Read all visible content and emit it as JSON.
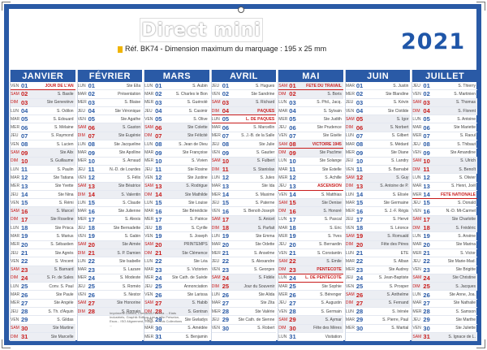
{
  "brand": "Direct mini",
  "reference": "Réf. BK74 - Dimension maximum du marquage : 195 x 25 mm",
  "year": "2021",
  "months": [
    {
      "name": "JANVIER",
      "days": [
        [
          "VEN",
          "01",
          "JOUR DE L'AN"
        ],
        [
          "SAM",
          "02",
          "S. Basile"
        ],
        [
          "DIM",
          "03",
          "Ste Geneviève"
        ],
        [
          "LUN",
          "04",
          "S. Odilon"
        ],
        [
          "MAR",
          "05",
          "S. Edouard"
        ],
        [
          "MER",
          "06",
          "S. Mélaine"
        ],
        [
          "JEU",
          "07",
          "S. Raymond"
        ],
        [
          "VEN",
          "08",
          "S. Lucien"
        ],
        [
          "SAM",
          "09",
          "Ste Alix"
        ],
        [
          "DIM",
          "10",
          "S. Guillaume"
        ],
        [
          "LUN",
          "11",
          "S. Paulin"
        ],
        [
          "MAR",
          "12",
          "Ste Tatiana"
        ],
        [
          "MER",
          "13",
          "Ste Yvette"
        ],
        [
          "JEU",
          "14",
          "Ste Nina"
        ],
        [
          "VEN",
          "15",
          "S. Rémi"
        ],
        [
          "SAM",
          "16",
          "S. Marcel"
        ],
        [
          "DIM",
          "17",
          "Ste Roseline"
        ],
        [
          "LUN",
          "18",
          "Ste Prisca"
        ],
        [
          "MAR",
          "19",
          "S. Marius"
        ],
        [
          "MER",
          "20",
          "S. Sébastien"
        ],
        [
          "JEU",
          "21",
          "Ste Agnès"
        ],
        [
          "VEN",
          "22",
          "S. Vincent"
        ],
        [
          "SAM",
          "23",
          "S. Barnard"
        ],
        [
          "DIM",
          "24",
          "S. Fr. de Sales"
        ],
        [
          "LUN",
          "25",
          "Conv. S. Paul"
        ],
        [
          "MAR",
          "26",
          "Ste Paule"
        ],
        [
          "MER",
          "27",
          "Ste Angèle"
        ],
        [
          "JEU",
          "28",
          "S. Th. d'Aquin"
        ],
        [
          "VEN",
          "29",
          "S. Gildas"
        ],
        [
          "SAM",
          "30",
          "Ste Martine"
        ],
        [
          "DIM",
          "31",
          "Ste Marcelle"
        ]
      ]
    },
    {
      "name": "FÉVRIER",
      "days": [
        [
          "LUN",
          "01",
          "Ste Ella"
        ],
        [
          "MAR",
          "02",
          "Présentation"
        ],
        [
          "MER",
          "03",
          "S. Blaise"
        ],
        [
          "JEU",
          "04",
          "Ste Véronique"
        ],
        [
          "VEN",
          "05",
          "Ste Agathe"
        ],
        [
          "SAM",
          "06",
          "S. Gaston"
        ],
        [
          "DIM",
          "07",
          "Ste Eugénie"
        ],
        [
          "LUN",
          "08",
          "Ste Jacqueline"
        ],
        [
          "MAR",
          "09",
          "Ste Apolline"
        ],
        [
          "MER",
          "10",
          "S. Arnaud"
        ],
        [
          "JEU",
          "11",
          "N.-D. de Lourdes"
        ],
        [
          "VEN",
          "12",
          "S. Félix"
        ],
        [
          "SAM",
          "13",
          "Ste Béatrice"
        ],
        [
          "DIM",
          "14",
          "S. Valentin"
        ],
        [
          "LUN",
          "15",
          "S. Claude"
        ],
        [
          "MAR",
          "16",
          "Ste Julienne"
        ],
        [
          "MER",
          "17",
          "S. Alexis"
        ],
        [
          "JEU",
          "18",
          "Ste Bernadette"
        ],
        [
          "VEN",
          "19",
          "S. Gabin"
        ],
        [
          "SAM",
          "20",
          "Ste Aimée"
        ],
        [
          "DIM",
          "21",
          "S. P. Damien"
        ],
        [
          "LUN",
          "22",
          "Ste Isabelle"
        ],
        [
          "MAR",
          "23",
          "S. Lazare"
        ],
        [
          "MER",
          "24",
          "S. Modeste"
        ],
        [
          "JEU",
          "25",
          "S. Roméo"
        ],
        [
          "VEN",
          "26",
          "S. Nestor"
        ],
        [
          "SAM",
          "27",
          "Ste Honorine"
        ],
        [
          "DIM",
          "28",
          "S. Romain"
        ]
      ]
    },
    {
      "name": "MARS",
      "days": [
        [
          "LUN",
          "01",
          "S. Aubin"
        ],
        [
          "MAR",
          "02",
          "S. Charles le Bon"
        ],
        [
          "MER",
          "03",
          "S. Guénolé"
        ],
        [
          "JEU",
          "04",
          "S. Casimir"
        ],
        [
          "VEN",
          "05",
          "S. Olive"
        ],
        [
          "SAM",
          "06",
          "Ste Colette"
        ],
        [
          "DIM",
          "07",
          "Ste Félicité"
        ],
        [
          "LUN",
          "08",
          "S. Jean de Dieu"
        ],
        [
          "MAR",
          "09",
          "Ste Françoise"
        ],
        [
          "MER",
          "10",
          "S. Vivien"
        ],
        [
          "JEU",
          "11",
          "Ste Rosine"
        ],
        [
          "VEN",
          "12",
          "Ste Justine"
        ],
        [
          "SAM",
          "13",
          "S. Rodrigue"
        ],
        [
          "DIM",
          "14",
          "Ste Mathilde"
        ],
        [
          "LUN",
          "15",
          "Ste Louise"
        ],
        [
          "MAR",
          "16",
          "Ste Bénédicte"
        ],
        [
          "MER",
          "17",
          "S. Patrice"
        ],
        [
          "JEU",
          "18",
          "S. Cyrille"
        ],
        [
          "VEN",
          "19",
          "S. Joseph"
        ],
        [
          "SAM",
          "20",
          "PRINTEMPS"
        ],
        [
          "DIM",
          "21",
          "Ste Clémence"
        ],
        [
          "LUN",
          "22",
          "Ste Léa"
        ],
        [
          "MAR",
          "23",
          "S. Victorien"
        ],
        [
          "MER",
          "24",
          "Ste Cath. de Suède"
        ],
        [
          "JEU",
          "25",
          "Annonciation"
        ],
        [
          "VEN",
          "26",
          "Ste Larissa"
        ],
        [
          "SAM",
          "27",
          "S. Habib"
        ],
        [
          "DIM",
          "28",
          "S. Gontran"
        ],
        [
          "LUN",
          "29",
          "Ste Gwladys"
        ],
        [
          "MAR",
          "30",
          "S. Amédée"
        ],
        [
          "MER",
          "31",
          "S. Benjamin"
        ]
      ]
    },
    {
      "name": "AVRIL",
      "days": [
        [
          "JEU",
          "01",
          "S. Hugues"
        ],
        [
          "VEN",
          "02",
          "Ste Sandrine"
        ],
        [
          "SAM",
          "03",
          "S. Richard"
        ],
        [
          "DIM",
          "04",
          "PÂQUES"
        ],
        [
          "LUN",
          "05",
          "L. DE PÂQUES"
        ],
        [
          "MAR",
          "06",
          "S. Marcellin"
        ],
        [
          "MER",
          "07",
          "S. J.-B. de la Salle"
        ],
        [
          "JEU",
          "08",
          "Ste Julie"
        ],
        [
          "VEN",
          "09",
          "S. Gautier"
        ],
        [
          "SAM",
          "10",
          "S. Fulbert"
        ],
        [
          "DIM",
          "11",
          "S. Stanislas"
        ],
        [
          "LUN",
          "12",
          "S. Jules"
        ],
        [
          "MAR",
          "13",
          "Ste Ida"
        ],
        [
          "MER",
          "14",
          "S. Maxime"
        ],
        [
          "JEU",
          "15",
          "S. Paterne"
        ],
        [
          "VEN",
          "16",
          "S. Benoît-Joseph"
        ],
        [
          "SAM",
          "17",
          "S. Anicet"
        ],
        [
          "DIM",
          "18",
          "S. Parfait"
        ],
        [
          "LUN",
          "19",
          "Ste Emma"
        ],
        [
          "MAR",
          "20",
          "Ste Odette"
        ],
        [
          "MER",
          "21",
          "S. Anselme"
        ],
        [
          "JEU",
          "22",
          "S. Alexandre"
        ],
        [
          "VEN",
          "23",
          "S. Georges"
        ],
        [
          "SAM",
          "24",
          "S. Fidèle"
        ],
        [
          "DIM",
          "25",
          "Jour du Souvenir"
        ],
        [
          "LUN",
          "26",
          "Ste Alida"
        ],
        [
          "MAR",
          "27",
          "Ste Zita"
        ],
        [
          "MER",
          "28",
          "Ste Valérie"
        ],
        [
          "JEU",
          "29",
          "Ste Cath. de Sienne"
        ],
        [
          "VEN",
          "30",
          "S. Robert"
        ]
      ]
    },
    {
      "name": "MAI",
      "days": [
        [
          "SAM",
          "01",
          "FÊTE DU TRAVAIL"
        ],
        [
          "DIM",
          "02",
          "S. Boris"
        ],
        [
          "LUN",
          "03",
          "S. Phil., Jacq."
        ],
        [
          "MAR",
          "04",
          "S. Sylvain"
        ],
        [
          "MER",
          "05",
          "Ste Judith"
        ],
        [
          "JEU",
          "06",
          "Ste Prudence"
        ],
        [
          "VEN",
          "07",
          "Ste Gisèle"
        ],
        [
          "SAM",
          "08",
          "VICTOIRE 1945"
        ],
        [
          "DIM",
          "09",
          "Ste Pacôme"
        ],
        [
          "LUN",
          "10",
          "Ste Solange"
        ],
        [
          "MAR",
          "11",
          "Ste Estelle"
        ],
        [
          "MER",
          "12",
          "S. Achille"
        ],
        [
          "JEU",
          "13",
          "ASCENSION"
        ],
        [
          "VEN",
          "14",
          "S. Matthias"
        ],
        [
          "SAM",
          "15",
          "Ste Denise"
        ],
        [
          "DIM",
          "16",
          "S. Honoré"
        ],
        [
          "LUN",
          "17",
          "S. Pascal"
        ],
        [
          "MAR",
          "18",
          "S. Eric"
        ],
        [
          "MER",
          "19",
          "S. Yves"
        ],
        [
          "JEU",
          "20",
          "S. Bernardin"
        ],
        [
          "VEN",
          "21",
          "S. Constantin"
        ],
        [
          "SAM",
          "22",
          "S. Emile"
        ],
        [
          "DIM",
          "23",
          "PENTECÔTE"
        ],
        [
          "LUN",
          "24",
          "L. DE PENTECÔTE"
        ],
        [
          "MAR",
          "25",
          "Ste Sophie"
        ],
        [
          "MER",
          "26",
          "S. Bérenger"
        ],
        [
          "JEU",
          "27",
          "S. Augustin"
        ],
        [
          "VEN",
          "28",
          "S. Germain"
        ],
        [
          "SAM",
          "29",
          "S. Aymar"
        ],
        [
          "DIM",
          "30",
          "Fête des Mères"
        ],
        [
          "LUN",
          "31",
          "Visitation"
        ]
      ]
    },
    {
      "name": "JUIN",
      "days": [
        [
          "MAR",
          "01",
          "S. Justin"
        ],
        [
          "MER",
          "02",
          "Ste Blandine"
        ],
        [
          "JEU",
          "03",
          "S. Kévin"
        ],
        [
          "VEN",
          "04",
          "Ste Clotilde"
        ],
        [
          "SAM",
          "05",
          "S. Igor"
        ],
        [
          "DIM",
          "06",
          "S. Norbert"
        ],
        [
          "LUN",
          "07",
          "S. Gilbert"
        ],
        [
          "MAR",
          "08",
          "S. Médard"
        ],
        [
          "MER",
          "09",
          "Ste Diane"
        ],
        [
          "JEU",
          "10",
          "S. Landry"
        ],
        [
          "VEN",
          "11",
          "S. Barnabé"
        ],
        [
          "SAM",
          "12",
          "S. Guy"
        ],
        [
          "DIM",
          "13",
          "S. Antoine de P."
        ],
        [
          "LUN",
          "14",
          "S. Elisée"
        ],
        [
          "MAR",
          "15",
          "Ste Germaine"
        ],
        [
          "MER",
          "16",
          "S. J.-F. Régis"
        ],
        [
          "JEU",
          "17",
          "S. Hervé"
        ],
        [
          "VEN",
          "18",
          "S. Léonce"
        ],
        [
          "SAM",
          "19",
          "S. Romuald"
        ],
        [
          "DIM",
          "20",
          "Fête des Pères"
        ],
        [
          "LUN",
          "21",
          "ÉTÉ"
        ],
        [
          "MAR",
          "22",
          "S. Alban"
        ],
        [
          "MER",
          "23",
          "Ste Audrey"
        ],
        [
          "JEU",
          "24",
          "S. Jean-Baptiste"
        ],
        [
          "VEN",
          "25",
          "S. Prosper"
        ],
        [
          "SAM",
          "26",
          "S. Anthelme"
        ],
        [
          "DIM",
          "27",
          "S. Fernand"
        ],
        [
          "LUN",
          "28",
          "S. Irénée"
        ],
        [
          "MAR",
          "29",
          "S. Pierre, Paul"
        ],
        [
          "MER",
          "30",
          "S. Martial"
        ]
      ]
    },
    {
      "name": "JUILLET",
      "days": [
        [
          "JEU",
          "01",
          "S. Thierry"
        ],
        [
          "VEN",
          "02",
          "S. Martinien"
        ],
        [
          "SAM",
          "03",
          "S. Thomas"
        ],
        [
          "DIM",
          "04",
          "S. Florent"
        ],
        [
          "LUN",
          "05",
          "S. Antoine"
        ],
        [
          "MAR",
          "06",
          "Ste Mariette"
        ],
        [
          "MER",
          "07",
          "S. Raoul"
        ],
        [
          "JEU",
          "08",
          "S. Thibaut"
        ],
        [
          "VEN",
          "09",
          "Ste Amandine"
        ],
        [
          "SAM",
          "10",
          "S. Ulrich"
        ],
        [
          "DIM",
          "11",
          "S. Benoît"
        ],
        [
          "LUN",
          "12",
          "S. Olivier"
        ],
        [
          "MAR",
          "13",
          "S. Henri, Joël"
        ],
        [
          "MER",
          "14",
          "FÊTE NATIONALE"
        ],
        [
          "JEU",
          "15",
          "S. Donald"
        ],
        [
          "VEN",
          "16",
          "N.-D. Mt-Carmel"
        ],
        [
          "SAM",
          "17",
          "Ste Charlotte"
        ],
        [
          "DIM",
          "18",
          "S. Frédéric"
        ],
        [
          "LUN",
          "19",
          "S. Arsène"
        ],
        [
          "MAR",
          "20",
          "Ste Marina"
        ],
        [
          "MER",
          "21",
          "S. Victor"
        ],
        [
          "JEU",
          "22",
          "Ste Marie-Mad."
        ],
        [
          "VEN",
          "23",
          "Ste Brigitte"
        ],
        [
          "SAM",
          "24",
          "Ste Christine"
        ],
        [
          "DIM",
          "25",
          "S. Jacques"
        ],
        [
          "LUN",
          "26",
          "Ste Anne, Joa."
        ],
        [
          "MAR",
          "27",
          "Ste Nathalie"
        ],
        [
          "MER",
          "28",
          "S. Samson"
        ],
        [
          "JEU",
          "29",
          "Ste Marthe"
        ],
        [
          "VEN",
          "30",
          "Ste Juliette"
        ],
        [
          "SAM",
          "31",
          "S. Ignace de L."
        ]
      ]
    }
  ],
  "holidays": [
    "01-01",
    "04-04",
    "04-05",
    "05-01",
    "05-08",
    "05-13",
    "05-23",
    "05-24",
    "07-14"
  ],
  "printer_note": "Imprimerie Dimitra, Chevanot-Ferreira ... Etats Industriels, Graphik Edition, Lieux Ville Préselon, Esca... ISO Alignement, Indigo ... Trois Collections ..."
}
